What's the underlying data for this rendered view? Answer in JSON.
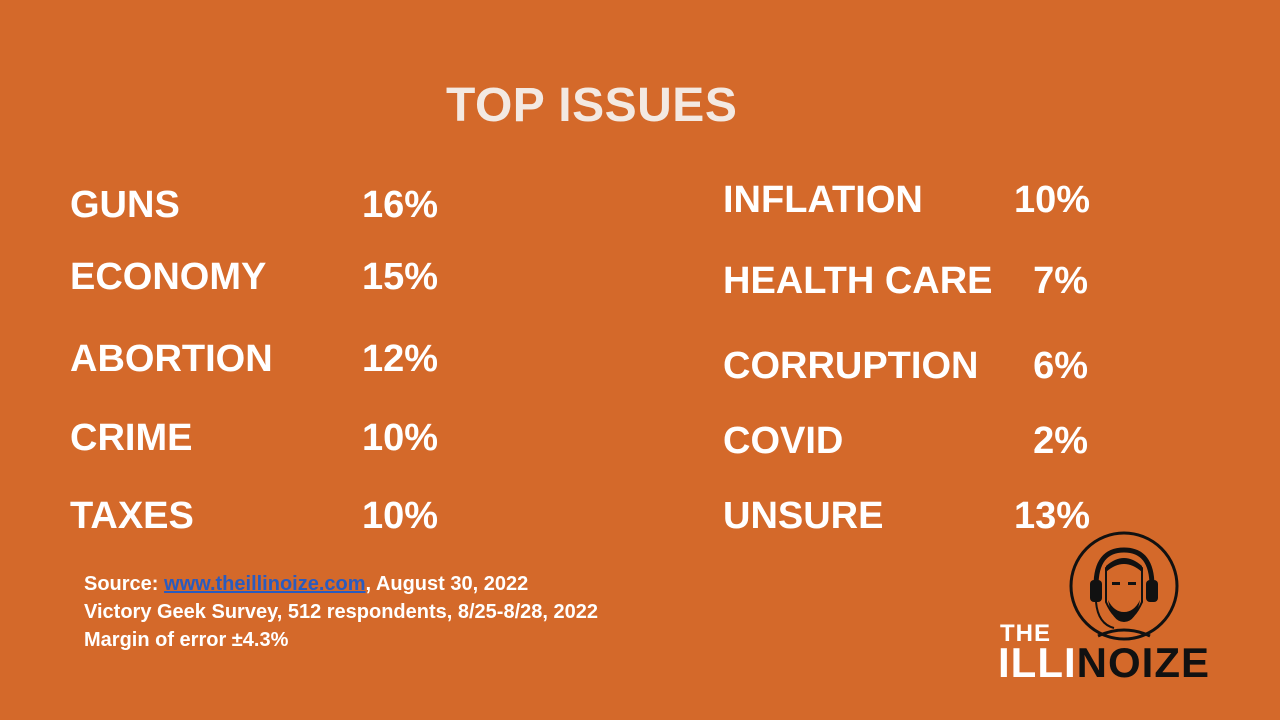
{
  "title": "TOP ISSUES",
  "left_issues": [
    {
      "label": "GUNS",
      "value": "16%"
    },
    {
      "label": "ECONOMY",
      "value": "15%"
    },
    {
      "label": "ABORTION",
      "value": "12%"
    },
    {
      "label": "CRIME",
      "value": "10%"
    },
    {
      "label": "TAXES",
      "value": "10%"
    }
  ],
  "right_issues": [
    {
      "label": "INFLATION",
      "value": "10%"
    },
    {
      "label": "HEALTH CARE",
      "value": "7%"
    },
    {
      "label": "CORRUPTION",
      "value": "6%"
    },
    {
      "label": "COVID",
      "value": "2%"
    },
    {
      "label": "UNSURE",
      "value": "13%"
    }
  ],
  "source": {
    "prefix": "Source: ",
    "link_text": "www.theillinoize.com",
    "suffix": ", August 30, 2022",
    "line2": "Victory Geek Survey, 512 respondents, 8/25-8/28, 2022",
    "line3": "Margin of error ±4.3%"
  },
  "logo": {
    "the": "THE",
    "word_white": "ILLI",
    "word_black": "NOIZE"
  },
  "colors": {
    "background": "#d4692a",
    "text": "#ffffff",
    "link": "#2a5bbf"
  }
}
